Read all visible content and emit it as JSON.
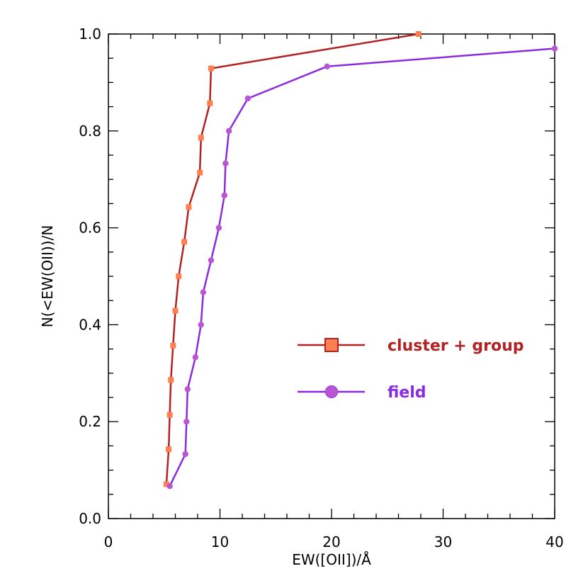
{
  "chart_data": {
    "type": "line",
    "title": "",
    "xlabel": "EW([OII])/Å",
    "ylabel": "N(<EW(OII))/N",
    "xlim": [
      0,
      40
    ],
    "ylim": [
      0,
      1.0
    ],
    "x_ticks": [
      "0",
      "10",
      "20",
      "30",
      "40"
    ],
    "y_ticks": [
      "0.0",
      "0.2",
      "0.4",
      "0.6",
      "0.8",
      "1.0"
    ],
    "legend_position": "center-right",
    "series": [
      {
        "name": "cluster + group",
        "color": "#b22222",
        "marker_color": "#ff7f50",
        "marker": "square",
        "points": [
          [
            5.2,
            0.071
          ],
          [
            5.4,
            0.143
          ],
          [
            5.5,
            0.214
          ],
          [
            5.6,
            0.286
          ],
          [
            5.8,
            0.357
          ],
          [
            6.0,
            0.429
          ],
          [
            6.3,
            0.5
          ],
          [
            6.8,
            0.571
          ],
          [
            7.2,
            0.643
          ],
          [
            8.2,
            0.714
          ],
          [
            8.3,
            0.786
          ],
          [
            9.1,
            0.857
          ],
          [
            9.2,
            0.929
          ],
          [
            27.8,
            1.0
          ]
        ]
      },
      {
        "name": "field",
        "color": "#8a2be2",
        "marker_color": "#ba55d3",
        "marker": "circle",
        "points": [
          [
            5.5,
            0.067
          ],
          [
            6.9,
            0.133
          ],
          [
            7.0,
            0.2
          ],
          [
            7.1,
            0.267
          ],
          [
            7.8,
            0.333
          ],
          [
            8.3,
            0.4
          ],
          [
            8.5,
            0.467
          ],
          [
            9.2,
            0.533
          ],
          [
            9.9,
            0.6
          ],
          [
            10.4,
            0.667
          ],
          [
            10.5,
            0.733
          ],
          [
            10.8,
            0.8
          ],
          [
            12.5,
            0.867
          ],
          [
            19.6,
            0.933
          ],
          [
            40.0,
            0.97
          ]
        ]
      }
    ]
  }
}
